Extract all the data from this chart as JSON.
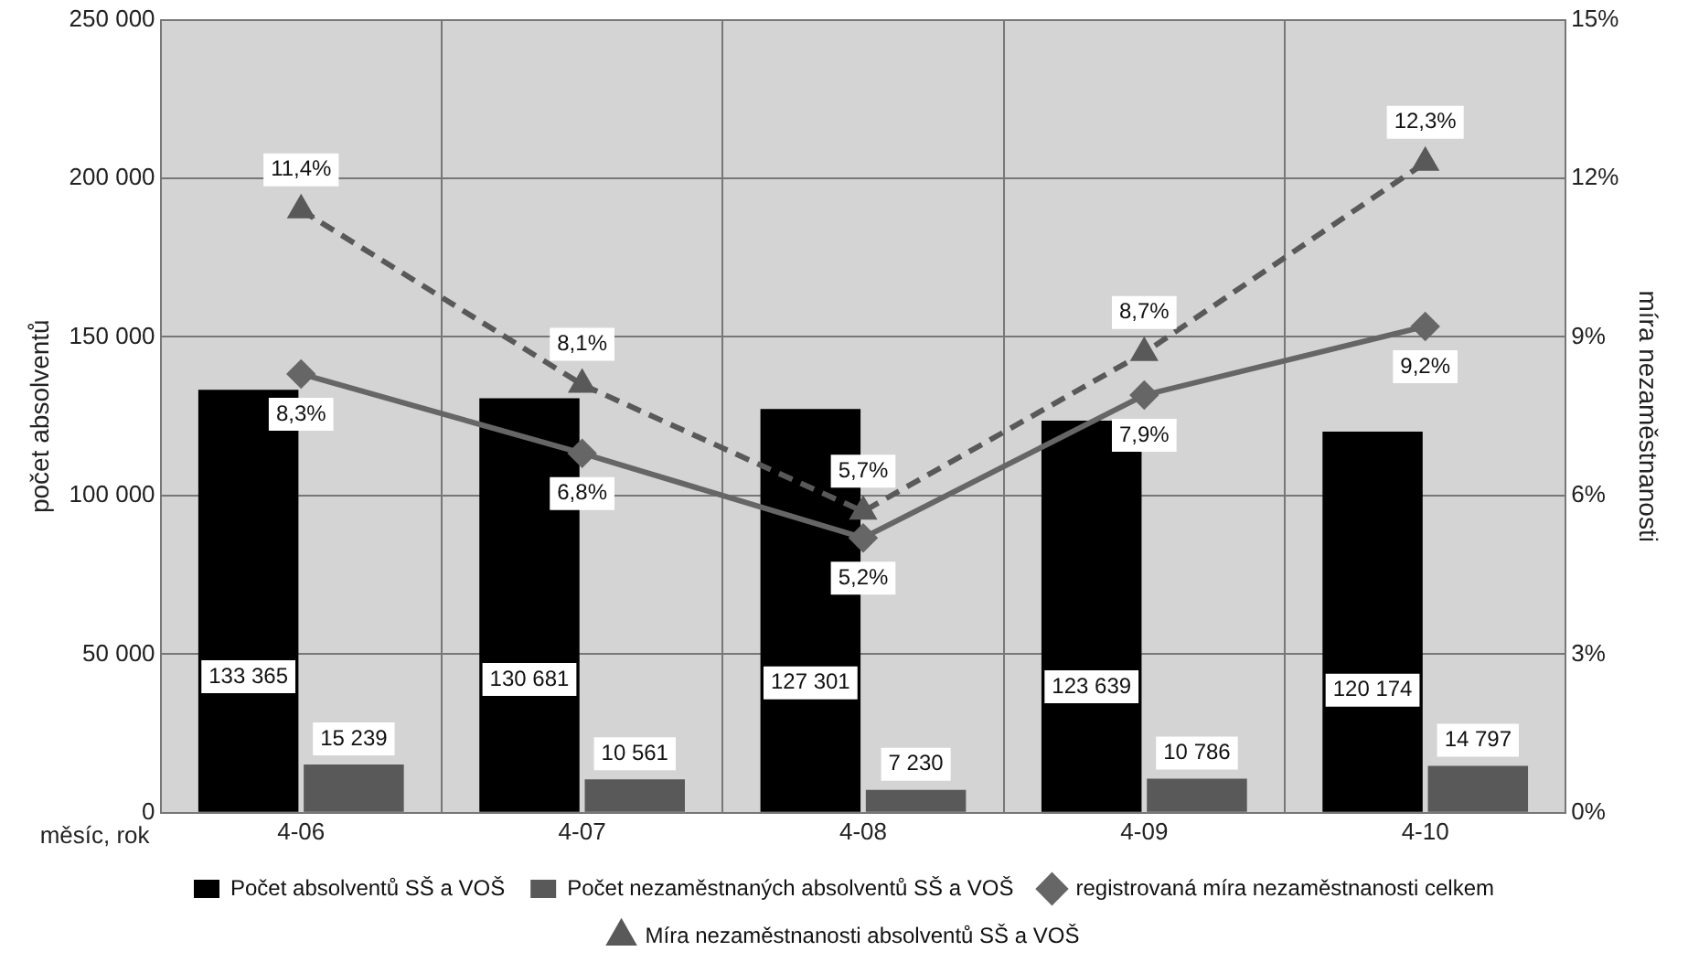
{
  "chart_data": {
    "type": "bar",
    "categories": [
      "4-06",
      "4-07",
      "4-08",
      "4-09",
      "4-10"
    ],
    "xlabel": "měsíc, rok",
    "ylabel": "počet absolventů",
    "y2label": "míra nezaměstnanosti",
    "series": [
      {
        "name": "Počet absolventů SŠ a VOŠ",
        "color": "#000000",
        "values": [
          133365,
          130681,
          127301,
          123639,
          120174
        ],
        "value_labels": [
          "133 365",
          "130 681",
          "127 301",
          "123 639",
          "120 174"
        ]
      },
      {
        "name": "Počet nezaměstnaných absolventů SŠ a VOŠ",
        "color": "#595959",
        "values": [
          15239,
          10561,
          7230,
          10786,
          14797
        ],
        "value_labels": [
          "15 239",
          "10 561",
          "7 230",
          "10 786",
          "14 797"
        ]
      },
      {
        "name": "registrovaná míra nezaměstnanosti celkem",
        "type": "line",
        "axis": "y2",
        "color": "#666666",
        "marker": "diamond",
        "line_style": "solid",
        "values": [
          8.3,
          6.8,
          5.2,
          7.9,
          9.2
        ],
        "value_labels": [
          "8,3%",
          "6,8%",
          "5,2%",
          "7,9%",
          "9,2%"
        ]
      },
      {
        "name": "Míra nezaměstnanosti absolventů SŠ a VOŠ",
        "type": "line",
        "axis": "y2",
        "color": "#595959",
        "marker": "triangle",
        "line_style": "dashed",
        "values": [
          11.4,
          8.1,
          5.7,
          8.7,
          12.3
        ],
        "value_labels": [
          "11,4%",
          "8,1%",
          "5,7%",
          "8,7%",
          "12,3%"
        ]
      }
    ],
    "ylim": [
      0,
      250000
    ],
    "yticks": [
      0,
      {
        "value": 50000,
        "label": "50 000"
      },
      {
        "value": 100000,
        "label": "100 000"
      },
      {
        "value": 150000,
        "label": "150 000"
      },
      {
        "value": 200000,
        "label": "200 000"
      },
      {
        "value": 250000,
        "label": "250 000"
      }
    ],
    "y2lim": [
      0,
      15
    ],
    "y2ticks": [
      {
        "value": 0,
        "label": "0%"
      },
      {
        "value": 3,
        "label": "3%"
      },
      {
        "value": 6,
        "label": "6%"
      },
      {
        "value": 9,
        "label": "9%"
      },
      {
        "value": 12,
        "label": "12%"
      },
      {
        "value": 15,
        "label": "15%"
      }
    ],
    "grid": true,
    "legend": "bottom"
  }
}
